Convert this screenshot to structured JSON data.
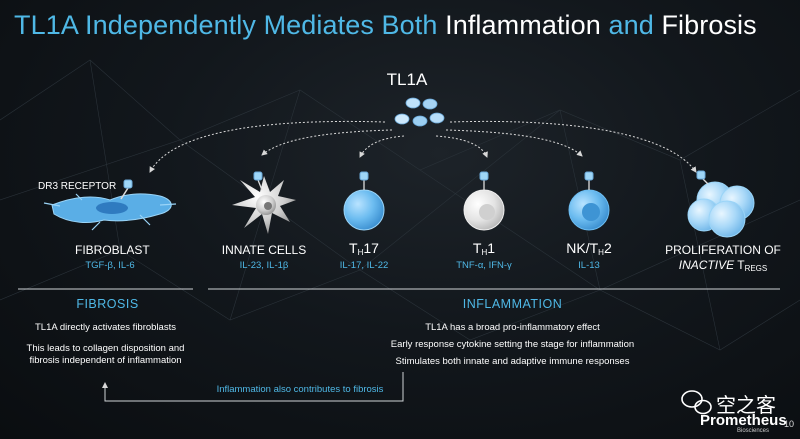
{
  "title": {
    "part1": "TL1A Independently Mediates Both ",
    "part2": "Inflammation",
    "part3": " and ",
    "part4": "Fibrosis"
  },
  "center": {
    "label": "TL1A"
  },
  "receptor_label": "DR3 RECEPTOR",
  "targets": [
    {
      "name": "FIBROBLAST",
      "sub": "TGF-β, IL-6"
    },
    {
      "name": "INNATE CELLS",
      "sub": "IL-23, IL-1β"
    },
    {
      "name_main": "T",
      "name_sub": "H",
      "name_tail": "17",
      "sub": "IL-17, IL-22"
    },
    {
      "name_main": "T",
      "name_sub": "H",
      "name_tail": "1",
      "sub": "TNF-α, IFN-γ"
    },
    {
      "name_main": "NK/T",
      "name_sub": "H",
      "name_tail": "2",
      "sub": "IL-13"
    },
    {
      "name_line1": "PROLIFERATION OF",
      "name_line2_italic": "INACTIVE",
      "name_line2_main": " T",
      "name_line2_sub": "REGS"
    }
  ],
  "fibrosis": {
    "heading": "FIBROSIS",
    "lines": [
      "TL1A directly activates fibroblasts",
      "This leads to collagen disposition and",
      "fibrosis independent of inflammation"
    ]
  },
  "inflammation": {
    "heading": "INFLAMMATION",
    "lines": [
      "TL1A has a broad pro-inflammatory effect",
      "Early response cytokine setting the stage for inflammation",
      "Stimulates both innate and adaptive immune responses"
    ]
  },
  "feedback_label": "Inflammation also contributes to fibrosis",
  "footer": {
    "watermark": "空之客",
    "brand": "Prometheus",
    "brand_sub": "Biosciences",
    "page": "10"
  },
  "colors": {
    "accent": "#4fb8e6",
    "cell_blue": "#5aaee6",
    "cell_white": "#e0e0e0",
    "background": "#12171c"
  }
}
